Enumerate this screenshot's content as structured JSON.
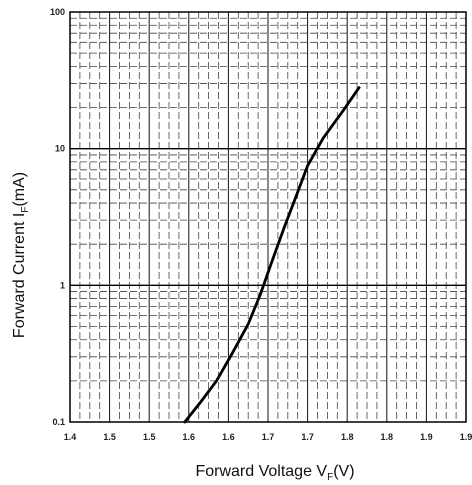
{
  "chart_data": {
    "type": "line",
    "xscale": "linear",
    "yscale": "log",
    "xlim": [
      1.4,
      1.9
    ],
    "ylim": [
      0.1,
      100
    ],
    "x_ticks": [
      "1.4",
      "1.5",
      "1.5",
      "1.6",
      "1.6",
      "1.7",
      "1.7",
      "1.8",
      "1.8",
      "1.9",
      "1.9"
    ],
    "y_ticks": [
      "100",
      "10",
      "1",
      "0.1"
    ],
    "xlabel": {
      "main": "Forward Voltage  V",
      "sub": "F",
      "unit": "(V)"
    },
    "ylabel": {
      "main": "Forward Current  I",
      "sub": "F",
      "unit": "(mA)"
    },
    "grid": true,
    "series": [
      {
        "x": [
          1.545,
          1.565,
          1.585,
          1.605,
          1.625,
          1.64,
          1.655,
          1.67,
          1.685,
          1.7,
          1.72,
          1.745,
          1.765
        ],
        "y": [
          0.1,
          0.14,
          0.2,
          0.32,
          0.52,
          0.85,
          1.5,
          2.6,
          4.4,
          7.5,
          12,
          19,
          28
        ]
      }
    ]
  }
}
